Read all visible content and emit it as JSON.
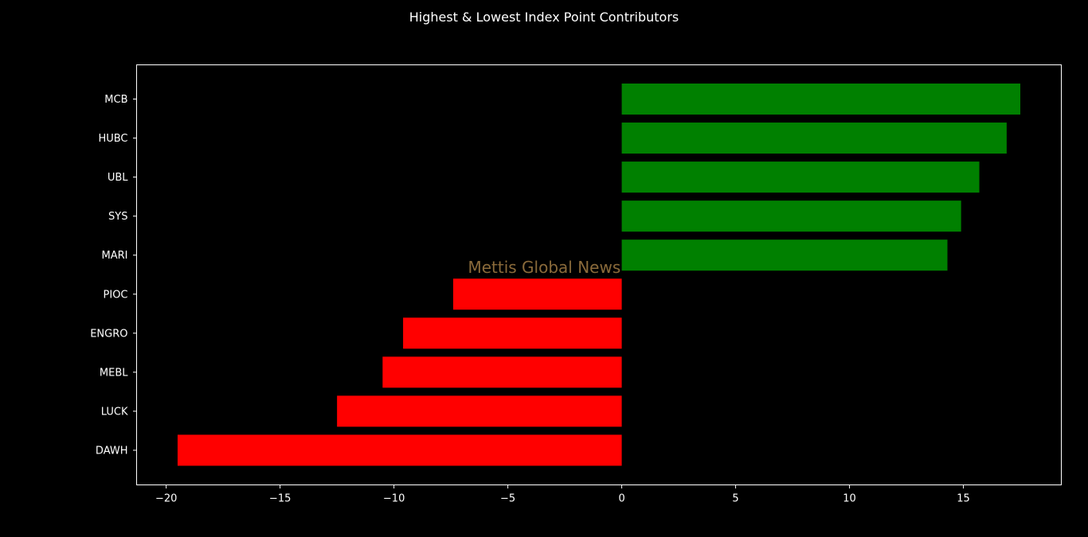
{
  "chart_data": {
    "type": "bar",
    "orientation": "horizontal",
    "title": "Highest & Lowest Index Point Contributors",
    "categories": [
      "MCB",
      "HUBC",
      "UBL",
      "SYS",
      "MARI",
      "PIOC",
      "ENGRO",
      "MEBL",
      "LUCK",
      "DAWH"
    ],
    "values": [
      17.5,
      16.9,
      15.7,
      14.9,
      14.3,
      -7.4,
      -9.6,
      -10.5,
      -12.5,
      -19.5
    ],
    "xlim": [
      -21.3,
      19.3
    ],
    "xticks": [
      -20,
      -15,
      -10,
      -5,
      0,
      5,
      10,
      15
    ],
    "xtick_labels": [
      "−20",
      "−15",
      "−10",
      "−5",
      "0",
      "5",
      "10",
      "15"
    ],
    "xlabel": "",
    "ylabel": "",
    "grid": false,
    "colors": {
      "positive": "#008000",
      "negative": "#ff0000",
      "background": "#000000",
      "axes": "#ffffff",
      "text": "#ffffff"
    },
    "annotation": {
      "text": "Mettis Global News",
      "x": -3.4,
      "color": "#8a6a3a"
    }
  }
}
